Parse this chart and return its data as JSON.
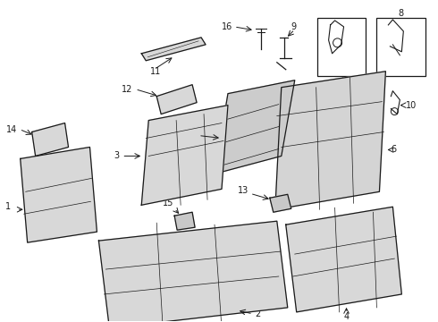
{
  "bg_color": "#ffffff",
  "line_color": "#1a1a1a",
  "fill_light": "#e0e0e0",
  "fill_mid": "#d0d0d0",
  "figsize": [
    4.9,
    3.6
  ],
  "dpi": 100
}
